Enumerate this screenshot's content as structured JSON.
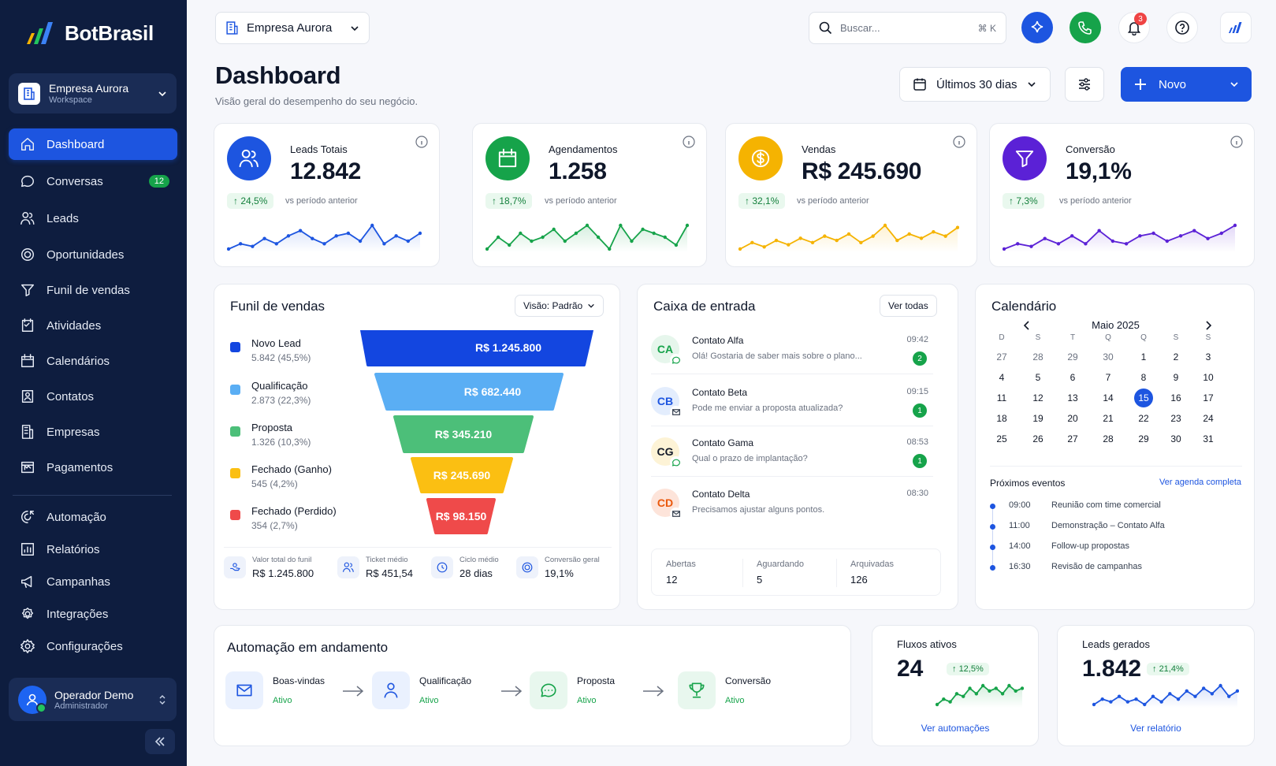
{
  "brand": {
    "name": "BotBrasil"
  },
  "workspace": {
    "name": "Empresa Aurora",
    "type": "Workspace"
  },
  "nav": [
    {
      "label": "Dashboard",
      "icon": "home-icon",
      "active": true
    },
    {
      "label": "Conversas",
      "icon": "chat-icon",
      "badge": "12"
    },
    {
      "label": "Leads",
      "icon": "users-icon"
    },
    {
      "label": "Oportunidades",
      "icon": "target-icon"
    },
    {
      "label": "Funil de vendas",
      "icon": "funnel-icon"
    },
    {
      "label": "Atividades",
      "icon": "checklist-icon"
    },
    {
      "label": "Calendários",
      "icon": "calendar-icon"
    },
    {
      "label": "Contatos",
      "icon": "contact-icon"
    },
    {
      "label": "Empresas",
      "icon": "building-icon"
    },
    {
      "label": "Pagamentos",
      "icon": "payment-icon"
    },
    {
      "label": "Automação",
      "icon": "automation-icon"
    },
    {
      "label": "Relatórios",
      "icon": "report-icon"
    },
    {
      "label": "Campanhas",
      "icon": "megaphone-icon"
    },
    {
      "label": "Integrações",
      "icon": "integration-icon"
    },
    {
      "label": "Configurações",
      "icon": "gear-icon"
    }
  ],
  "user": {
    "name": "Operador Demo",
    "role": "Administrador"
  },
  "topbar": {
    "company": "Empresa Aurora",
    "search_placeholder": "Buscar...",
    "shortcut": "⌘ K",
    "notifications": "3"
  },
  "page": {
    "title": "Dashboard",
    "subtitle": "Visão geral do desempenho do seu negócio.",
    "range": "Últimos 30 dias",
    "new_label": "Novo"
  },
  "kpis": [
    {
      "label": "Leads Totais",
      "value": "12.842",
      "delta": "24,5%",
      "vs": "vs período anterior",
      "color": "#1d55e0",
      "icon": "users-icon",
      "spark": [
        3,
        5,
        4,
        7,
        5,
        8,
        10,
        7,
        5,
        8,
        9,
        6,
        12,
        5,
        8,
        6,
        9
      ]
    },
    {
      "label": "Agendamentos",
      "value": "1.258",
      "delta": "18,7%",
      "vs": "vs período anterior",
      "color": "#16a34a",
      "icon": "calendar-icon",
      "spark": [
        4,
        7,
        5,
        8,
        6,
        7,
        9,
        6,
        8,
        10,
        7,
        4,
        10,
        6,
        9,
        8,
        7,
        5,
        10
      ]
    },
    {
      "label": "Vendas",
      "value": "R$ 245.690",
      "delta": "32,1%",
      "vs": "vs período anterior",
      "color": "#f5b301",
      "icon": "dollar-icon",
      "spark": [
        3,
        6,
        4,
        7,
        5,
        8,
        6,
        9,
        7,
        10,
        6,
        9,
        14,
        7,
        10,
        8,
        11,
        9,
        13
      ]
    },
    {
      "label": "Conversão",
      "value": "19,1%",
      "delta": "7,3%",
      "vs": "vs período anterior",
      "color": "#5b21d6",
      "icon": "funnel-icon",
      "spark": [
        3,
        5,
        4,
        7,
        5,
        8,
        5,
        10,
        6,
        5,
        8,
        9,
        6,
        8,
        10,
        7,
        9,
        12
      ]
    }
  ],
  "funnel": {
    "title": "Funil de vendas",
    "view": "Visão: Padrão",
    "stages": [
      {
        "name": "Novo Lead",
        "sub": "5.842 (45,5%)",
        "value": "R$ 1.245.800",
        "color": "#1346e0"
      },
      {
        "name": "Qualificação",
        "sub": "2.873 (22,3%)",
        "value": "R$ 682.440",
        "color": "#5aaef4"
      },
      {
        "name": "Proposta",
        "sub": "1.326 (10,3%)",
        "value": "R$ 345.210",
        "color": "#4cbf79"
      },
      {
        "name": "Fechado (Ganho)",
        "sub": "545 (4,2%)",
        "value": "R$ 245.690",
        "color": "#fbbf12"
      },
      {
        "name": "Fechado (Perdido)",
        "sub": "354 (2,7%)",
        "value": "R$ 98.150",
        "color": "#ef4a4a"
      }
    ],
    "stats": [
      {
        "label": "Valor total do funil",
        "value": "R$ 1.245.800"
      },
      {
        "label": "Ticket médio",
        "value": "R$ 451,54"
      },
      {
        "label": "Ciclo médio",
        "value": "28 dias"
      },
      {
        "label": "Conversão geral",
        "value": "19,1%"
      }
    ]
  },
  "inbox": {
    "title": "Caixa de entrada",
    "all": "Ver todas",
    "messages": [
      {
        "initials": "CA",
        "name": "Contato Alfa",
        "preview": "Olá! Gostaria de saber mais sobre o plano...",
        "time": "09:42",
        "unread": "2",
        "bg": "#e6f6ec",
        "fg": "#16a34a",
        "channel": "whatsapp"
      },
      {
        "initials": "CB",
        "name": "Contato Beta",
        "preview": "Pode me enviar a proposta atualizada?",
        "time": "09:15",
        "unread": "1",
        "bg": "#e3edfd",
        "fg": "#1d55e0",
        "channel": "email"
      },
      {
        "initials": "CG",
        "name": "Contato Gama",
        "preview": "Qual o prazo de implantação?",
        "time": "08:53",
        "unread": "1",
        "bg": "#fdf3d6",
        "fg": "#111827",
        "channel": "whatsapp"
      },
      {
        "initials": "CD",
        "name": "Contato Delta",
        "preview": "Precisamos ajustar alguns pontos.",
        "time": "08:30",
        "unread": "",
        "bg": "#fde4da",
        "fg": "#ea580c",
        "channel": "email"
      }
    ],
    "stats": [
      {
        "label": "Abertas",
        "value": "12"
      },
      {
        "label": "Aguardando",
        "value": "5"
      },
      {
        "label": "Arquivadas",
        "value": "126"
      }
    ]
  },
  "calendar": {
    "title": "Calendário",
    "month": "Maio 2025",
    "weekdays": [
      "D",
      "S",
      "T",
      "Q",
      "Q",
      "S",
      "S"
    ],
    "weeks": [
      [
        "27",
        "28",
        "29",
        "30",
        "1",
        "2",
        "3"
      ],
      [
        "4",
        "5",
        "6",
        "7",
        "8",
        "9",
        "10"
      ],
      [
        "11",
        "12",
        "13",
        "14",
        "15",
        "16",
        "17"
      ],
      [
        "18",
        "19",
        "20",
        "21",
        "22",
        "23",
        "24"
      ],
      [
        "25",
        "26",
        "27",
        "28",
        "29",
        "30",
        "31"
      ]
    ],
    "today": "15",
    "events_title": "Próximos eventos",
    "events_link": "Ver agenda completa",
    "events": [
      {
        "time": "09:00",
        "text": "Reunião com time comercial"
      },
      {
        "time": "11:00",
        "text": "Demonstração – Contato Alfa"
      },
      {
        "time": "14:00",
        "text": "Follow-up propostas"
      },
      {
        "time": "16:30",
        "text": "Revisão de campanhas"
      }
    ]
  },
  "automation": {
    "title": "Automação em andamento",
    "steps": [
      {
        "name": "Boas-vindas",
        "status": "Ativo",
        "icon": "mail-icon"
      },
      {
        "name": "Qualificação",
        "status": "Ativo",
        "icon": "user-icon"
      },
      {
        "name": "Proposta",
        "status": "Ativo",
        "icon": "chat-bubble-icon"
      },
      {
        "name": "Conversão",
        "status": "Ativo",
        "icon": "trophy-icon"
      }
    ]
  },
  "flows": {
    "title": "Fluxos ativos",
    "value": "24",
    "delta": "12,5%",
    "link": "Ver automações",
    "spark": [
      2,
      4,
      3,
      6,
      5,
      8,
      6,
      9,
      7,
      8,
      6,
      9,
      7,
      8
    ]
  },
  "leads_gen": {
    "title": "Leads gerados",
    "value": "1.842",
    "delta": "21,4%",
    "link": "Ver relatório",
    "spark": [
      3,
      5,
      4,
      6,
      4,
      5,
      3,
      6,
      4,
      7,
      5,
      8,
      6,
      9,
      7,
      10,
      6,
      8
    ]
  }
}
